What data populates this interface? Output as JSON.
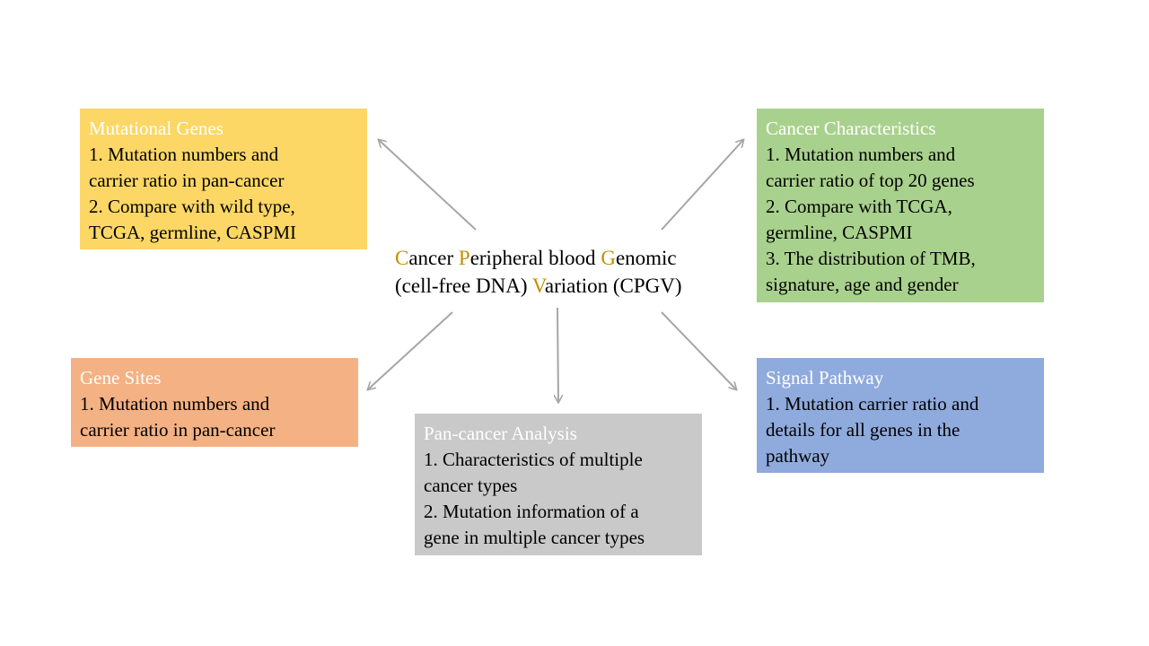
{
  "center": {
    "line1": [
      {
        "i": "C",
        "r": "ancer "
      },
      {
        "i": "P",
        "r": "eripheral blood "
      },
      {
        "i": "G",
        "r": "enomic"
      }
    ],
    "line2_pre": "(cell-free DNA) ",
    "line2_i": "V",
    "line2_r": "ariation (CPGV)",
    "accent_color": "#bf9000"
  },
  "boxes": {
    "mutational_genes": {
      "title": "Mutational Genes",
      "lines": [
        "1. Mutation numbers and",
        "carrier ratio in pan-cancer",
        "2. Compare with wild type,",
        "TCGA, germline, CASPMI"
      ],
      "color": "#fcd766"
    },
    "cancer_characteristics": {
      "title": "Cancer Characteristics",
      "lines": [
        "1. Mutation numbers and",
        "carrier ratio of top 20 genes",
        "2. Compare with TCGA,",
        "germline, CASPMI",
        "3. The distribution of TMB,",
        "signature, age and gender"
      ],
      "color": "#a9d18e"
    },
    "gene_sites": {
      "title": "Gene Sites",
      "lines": [
        "1. Mutation numbers and",
        "carrier ratio in pan-cancer"
      ],
      "color": "#f4b183"
    },
    "pan_cancer": {
      "title": "Pan-cancer Analysis",
      "lines": [
        "1. Characteristics of multiple",
        "cancer types",
        "2. Mutation information of a",
        "gene in multiple cancer types"
      ],
      "color": "#c9c9c9"
    },
    "signal_pathway": {
      "title": "Signal Pathway",
      "lines": [
        "1. Mutation carrier ratio and",
        "details for all genes in the",
        "pathway"
      ],
      "color": "#8faadc"
    }
  },
  "arrow_color": "#a6a6a6"
}
